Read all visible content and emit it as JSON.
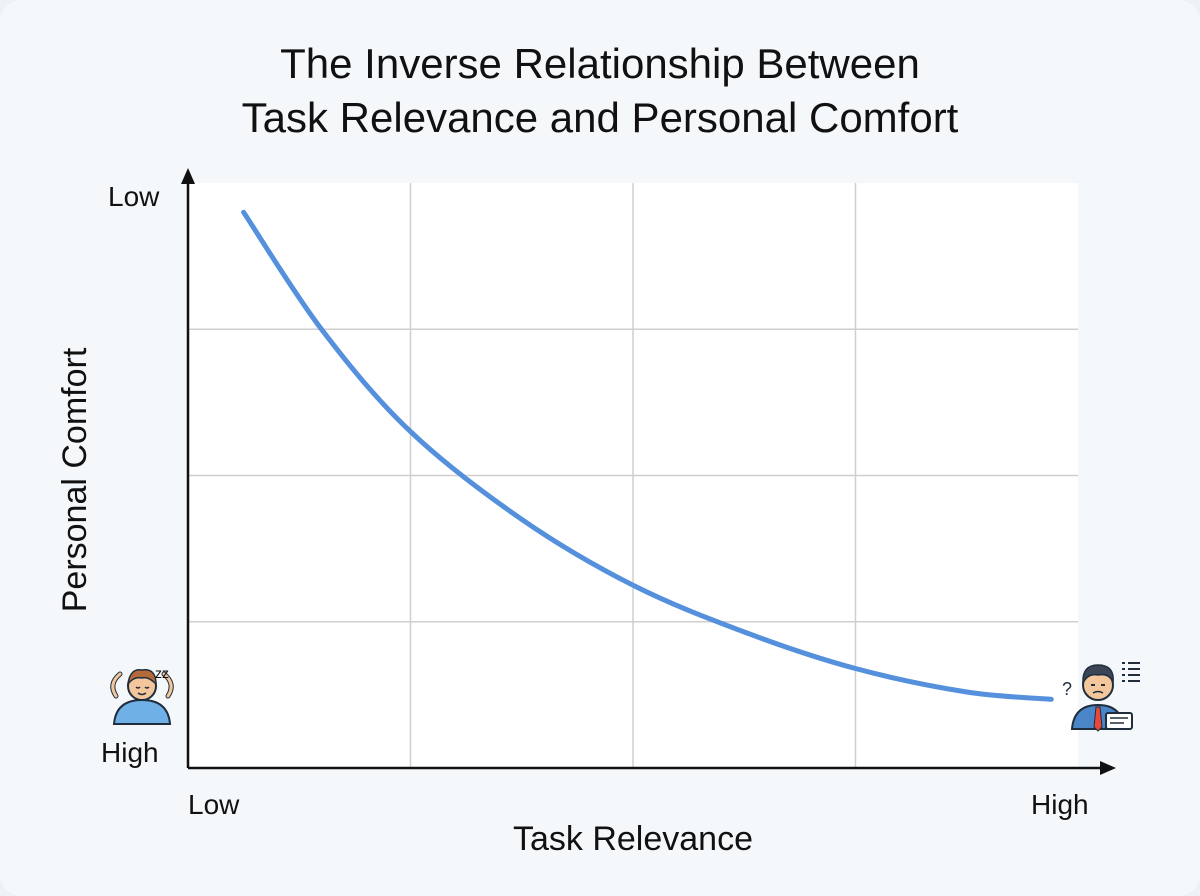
{
  "chart_data": {
    "type": "line",
    "title": "The Inverse Relationship Between Task Relevance and Personal Comfort",
    "title_lines": [
      "The Inverse Relationship Between",
      "Task Relevance and Personal Comfort"
    ],
    "xlabel": "Task Relevance",
    "ylabel": "Personal Comfort",
    "x_tick_labels": [
      "Low",
      "High"
    ],
    "y_tick_labels": [
      "Low",
      "High"
    ],
    "xlim": [
      0,
      4
    ],
    "ylim": [
      0,
      4
    ],
    "grid": true,
    "series": [
      {
        "values_x": [
          0.25,
          0.6,
          1.0,
          1.5,
          2.0,
          2.5,
          3.0,
          3.5,
          3.88
        ],
        "values_y": [
          3.8,
          3.0,
          2.3,
          1.7,
          1.25,
          0.93,
          0.68,
          0.52,
          0.47
        ],
        "color": "#5590dd"
      }
    ],
    "icons": [
      {
        "name": "relaxed-person-sleeping-icon",
        "sleep_text": "zz"
      },
      {
        "name": "stressed-office-worker-icon",
        "question_text": "?"
      }
    ]
  }
}
